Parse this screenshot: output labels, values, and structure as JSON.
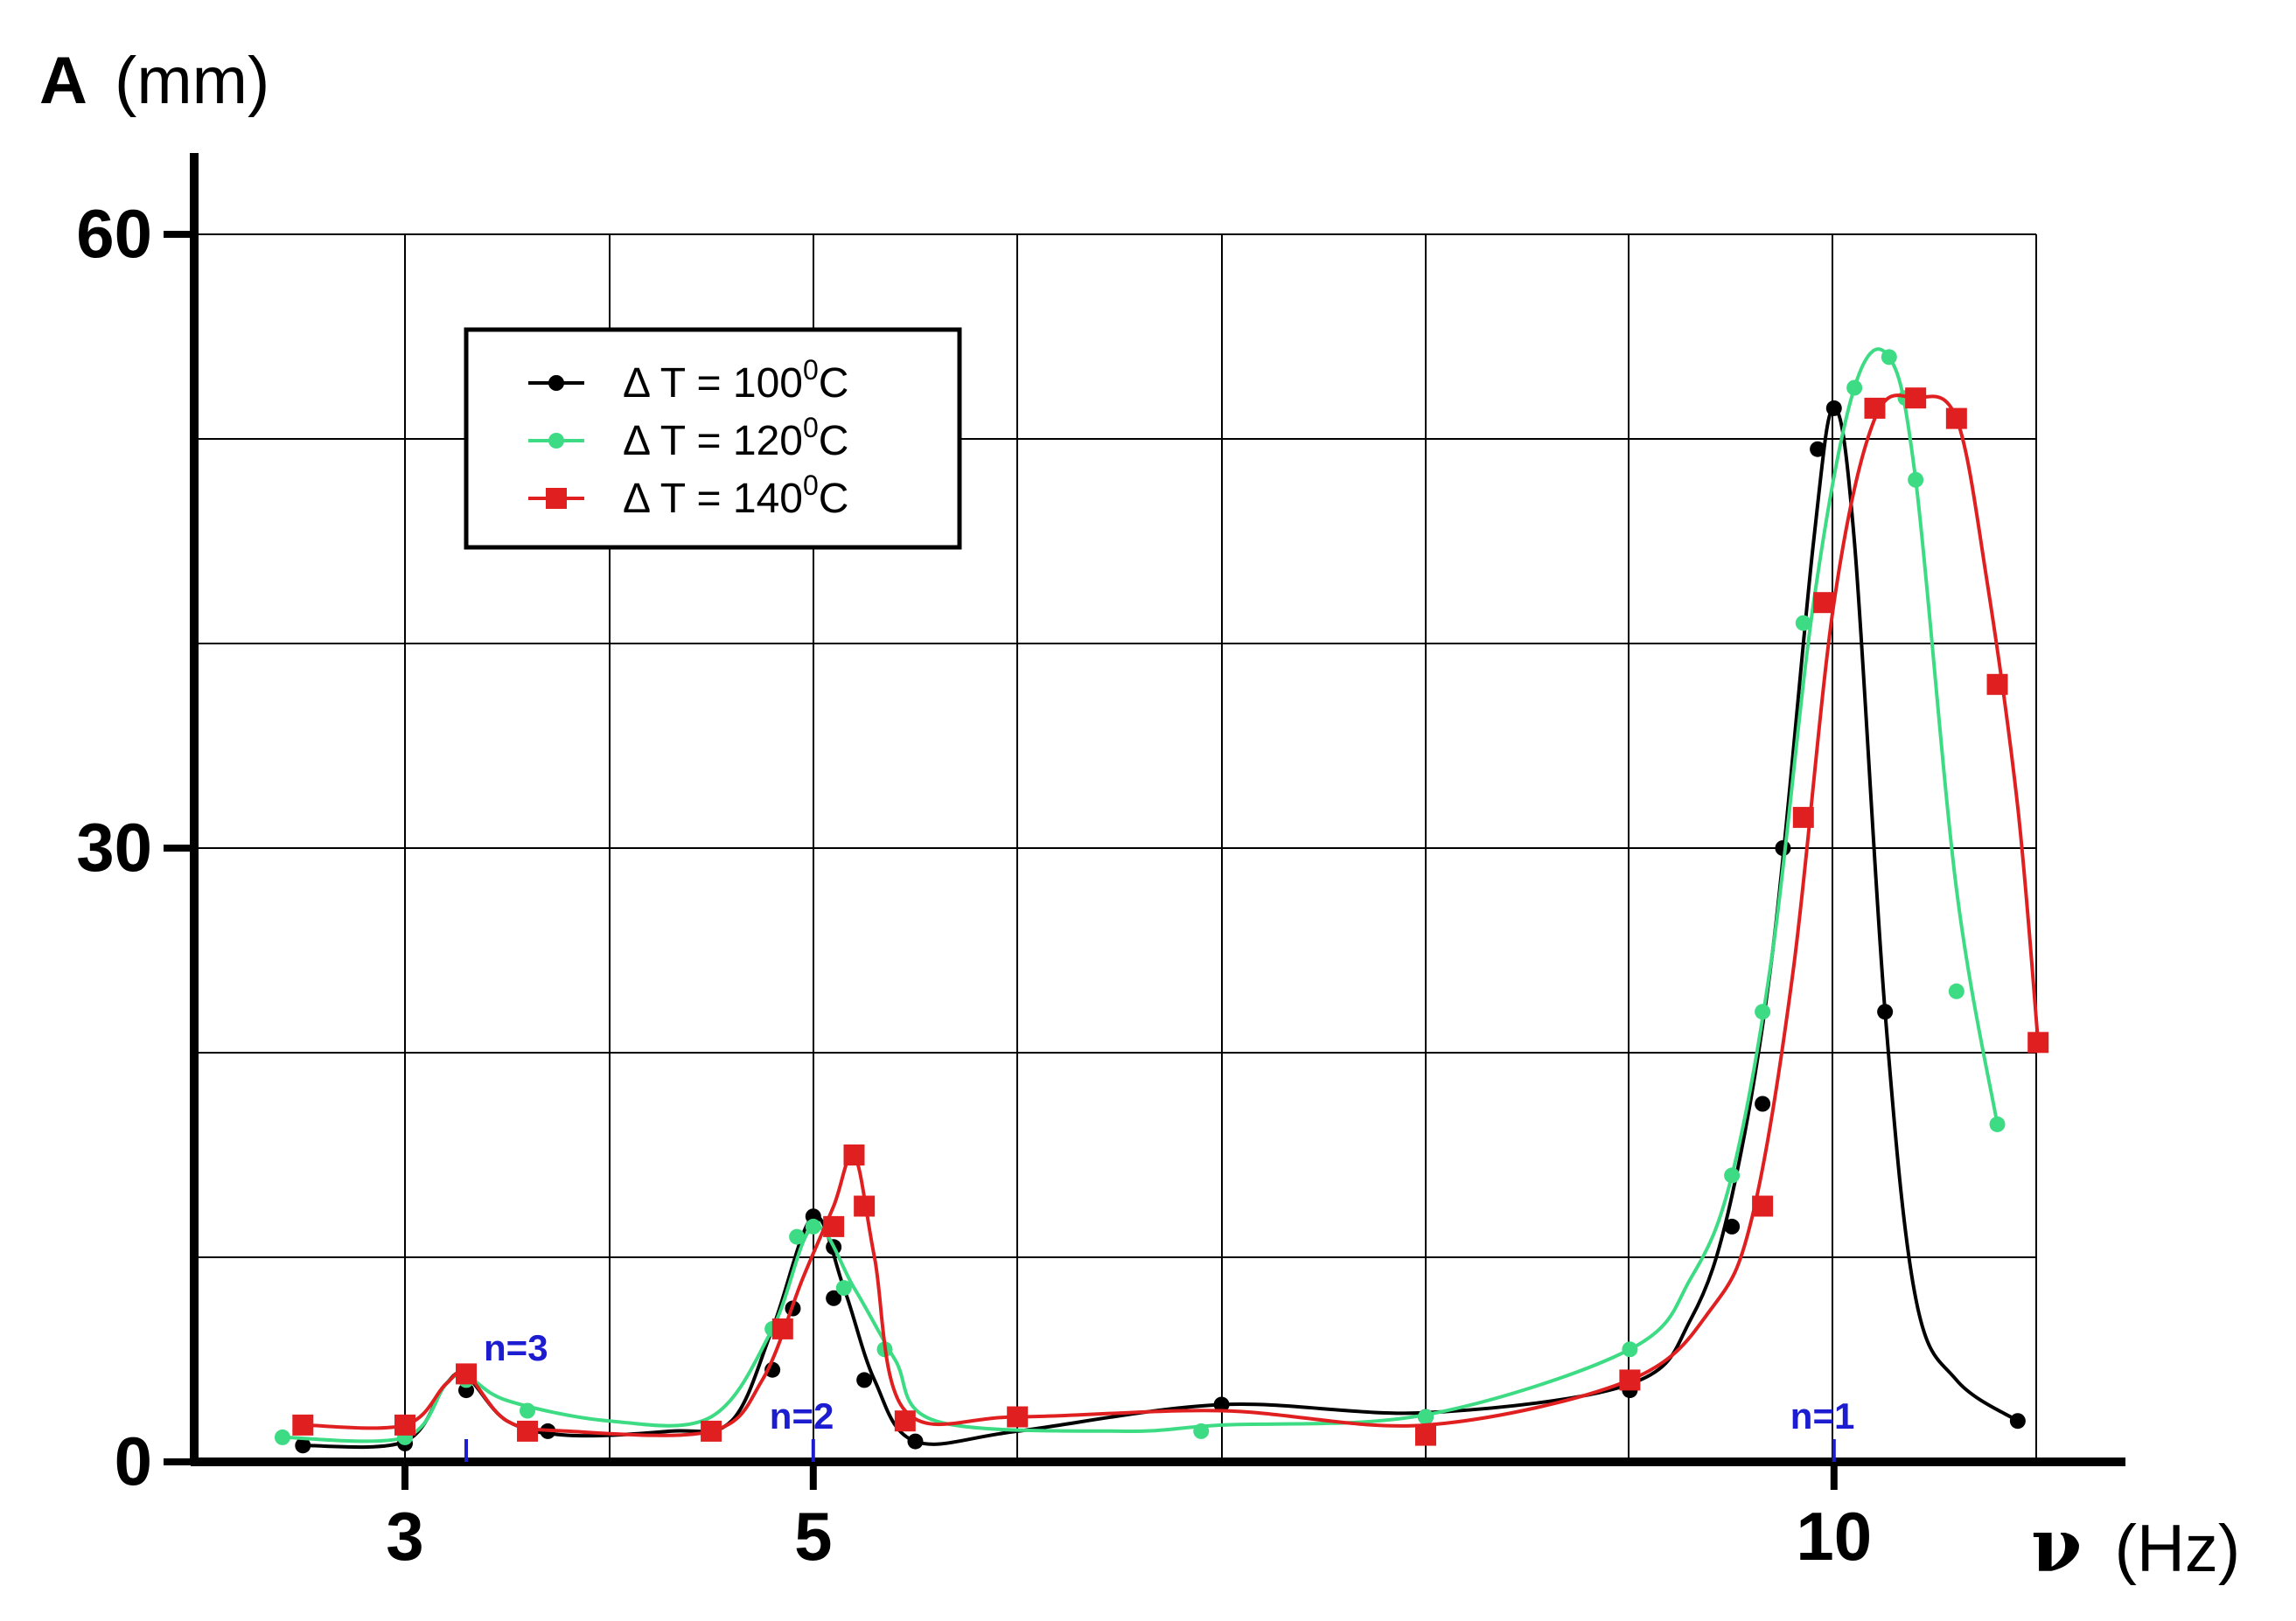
{
  "chart_data": {
    "type": "line",
    "xlabel_symbol": "ν",
    "xlabel_unit": "(Hz)",
    "ylabel_symbol": "A",
    "ylabel_unit": "(mm)",
    "xlim": [
      2,
      11.5
    ],
    "ylim": [
      0,
      60
    ],
    "x_ticks": [
      3,
      5,
      10
    ],
    "x_tick_labels": [
      "3",
      "5",
      "10"
    ],
    "y_ticks": [
      0,
      30,
      60
    ],
    "y_tick_labels": [
      "0",
      "30",
      "60"
    ],
    "grid": true,
    "legend_position": "top-left",
    "series": [
      {
        "name_prefix": "Δ T =  100",
        "name_sup": "0",
        "name_suffix": "C",
        "color": "#000000",
        "marker": "circle",
        "points": [
          [
            2.5,
            0.8
          ],
          [
            3.0,
            0.9
          ],
          [
            3.3,
            3.5
          ],
          [
            3.7,
            1.5
          ],
          [
            4.5,
            1.5
          ],
          [
            4.8,
            4.5
          ],
          [
            4.9,
            7.5
          ],
          [
            5.0,
            12.0
          ],
          [
            5.1,
            10.5
          ],
          [
            5.1,
            8.0
          ],
          [
            5.25,
            4.0
          ],
          [
            5.5,
            1.0
          ],
          [
            7.0,
            2.8
          ],
          [
            8.0,
            2.2
          ],
          [
            9.0,
            3.5
          ],
          [
            9.5,
            11.5
          ],
          [
            9.65,
            17.5
          ],
          [
            9.75,
            30.0
          ],
          [
            9.92,
            49.5
          ],
          [
            10.0,
            51.5
          ],
          [
            10.25,
            22.0
          ],
          [
            10.9,
            2.0
          ]
        ],
        "curve": [
          [
            2.5,
            0.8
          ],
          [
            3.0,
            1.0
          ],
          [
            3.2,
            3.8
          ],
          [
            3.3,
            4.2
          ],
          [
            3.5,
            2.0
          ],
          [
            3.8,
            1.3
          ],
          [
            4.3,
            1.5
          ],
          [
            4.6,
            2.0
          ],
          [
            4.8,
            6.5
          ],
          [
            5.0,
            12.0
          ],
          [
            5.15,
            8.5
          ],
          [
            5.3,
            4.0
          ],
          [
            5.5,
            1.0
          ],
          [
            6.0,
            1.5
          ],
          [
            7.0,
            2.8
          ],
          [
            8.0,
            2.4
          ],
          [
            9.0,
            3.8
          ],
          [
            9.3,
            7.0
          ],
          [
            9.5,
            13.0
          ],
          [
            9.7,
            25.0
          ],
          [
            9.9,
            45.0
          ],
          [
            10.0,
            51.5
          ],
          [
            10.1,
            45.0
          ],
          [
            10.25,
            22.0
          ],
          [
            10.4,
            8.0
          ],
          [
            10.6,
            4.0
          ],
          [
            10.9,
            2.0
          ]
        ]
      },
      {
        "name_prefix": "Δ T =  120",
        "name_sup": "0",
        "name_suffix": "C",
        "color": "#3ddc84",
        "marker": "circle",
        "points": [
          [
            2.4,
            1.2
          ],
          [
            3.0,
            1.2
          ],
          [
            3.3,
            4.0
          ],
          [
            3.6,
            2.5
          ],
          [
            4.8,
            6.5
          ],
          [
            4.92,
            11.0
          ],
          [
            5.0,
            11.5
          ],
          [
            5.15,
            8.5
          ],
          [
            5.35,
            5.5
          ],
          [
            6.9,
            1.5
          ],
          [
            8.0,
            2.2
          ],
          [
            9.0,
            5.5
          ],
          [
            9.5,
            14.0
          ],
          [
            9.65,
            22.0
          ],
          [
            9.85,
            41.0
          ],
          [
            10.1,
            52.5
          ],
          [
            10.27,
            54.0
          ],
          [
            10.35,
            52.0
          ],
          [
            10.4,
            48.0
          ],
          [
            10.6,
            23.0
          ],
          [
            10.8,
            16.5
          ]
        ],
        "curve": [
          [
            2.4,
            1.2
          ],
          [
            3.0,
            1.2
          ],
          [
            3.2,
            3.8
          ],
          [
            3.3,
            4.2
          ],
          [
            3.5,
            3.0
          ],
          [
            4.0,
            2.0
          ],
          [
            4.5,
            2.2
          ],
          [
            4.8,
            6.5
          ],
          [
            5.0,
            11.5
          ],
          [
            5.2,
            8.5
          ],
          [
            5.4,
            5.0
          ],
          [
            5.6,
            2.0
          ],
          [
            6.5,
            1.5
          ],
          [
            7.0,
            1.8
          ],
          [
            8.0,
            2.3
          ],
          [
            9.0,
            5.5
          ],
          [
            9.3,
            9.0
          ],
          [
            9.5,
            14.0
          ],
          [
            9.7,
            25.0
          ],
          [
            9.9,
            42.0
          ],
          [
            10.1,
            52.5
          ],
          [
            10.27,
            54.0
          ],
          [
            10.4,
            48.0
          ],
          [
            10.6,
            28.0
          ],
          [
            10.8,
            16.5
          ]
        ]
      },
      {
        "name_prefix": "Δ T =  140",
        "name_sup": "0",
        "name_suffix": "C",
        "color": "#e02020",
        "marker": "square",
        "points": [
          [
            2.5,
            1.8
          ],
          [
            3.0,
            1.8
          ],
          [
            3.3,
            4.3
          ],
          [
            3.6,
            1.5
          ],
          [
            4.5,
            1.5
          ],
          [
            4.85,
            6.5
          ],
          [
            5.1,
            11.5
          ],
          [
            5.2,
            15.0
          ],
          [
            5.25,
            12.5
          ],
          [
            5.45,
            2.0
          ],
          [
            6.0,
            2.2
          ],
          [
            8.0,
            1.3
          ],
          [
            9.0,
            4.0
          ],
          [
            9.65,
            12.5
          ],
          [
            9.85,
            31.5
          ],
          [
            9.95,
            42.0
          ],
          [
            10.2,
            51.5
          ],
          [
            10.4,
            52.0
          ],
          [
            10.6,
            51.0
          ],
          [
            10.8,
            38.0
          ],
          [
            11.0,
            20.5
          ]
        ],
        "curve": [
          [
            2.5,
            1.8
          ],
          [
            3.0,
            1.8
          ],
          [
            3.2,
            3.8
          ],
          [
            3.3,
            4.3
          ],
          [
            3.5,
            2.0
          ],
          [
            3.8,
            1.5
          ],
          [
            4.5,
            1.5
          ],
          [
            4.75,
            4.0
          ],
          [
            4.95,
            9.0
          ],
          [
            5.1,
            12.5
          ],
          [
            5.2,
            15.0
          ],
          [
            5.3,
            10.0
          ],
          [
            5.45,
            2.5
          ],
          [
            6.0,
            2.2
          ],
          [
            7.0,
            2.5
          ],
          [
            8.0,
            1.8
          ],
          [
            9.0,
            4.0
          ],
          [
            9.4,
            7.5
          ],
          [
            9.6,
            12.0
          ],
          [
            9.8,
            24.0
          ],
          [
            10.0,
            42.0
          ],
          [
            10.2,
            51.0
          ],
          [
            10.4,
            52.0
          ],
          [
            10.6,
            51.0
          ],
          [
            10.75,
            43.0
          ],
          [
            10.9,
            32.0
          ],
          [
            11.0,
            20.5
          ]
        ]
      }
    ],
    "annotations": [
      {
        "text": "n=3",
        "x": 3.3
      },
      {
        "text": "n=2",
        "x": 5.0
      },
      {
        "text": "n=1",
        "x": 10.0
      }
    ]
  }
}
